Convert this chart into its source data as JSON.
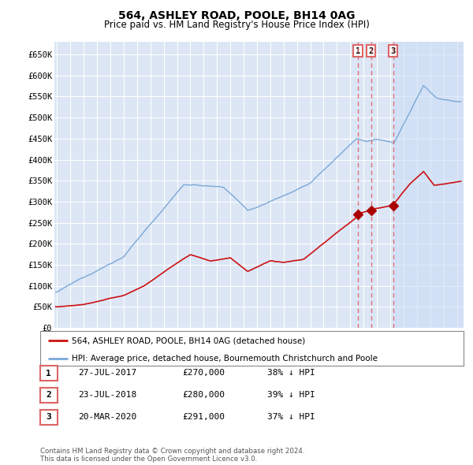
{
  "title": "564, ASHLEY ROAD, POOLE, BH14 0AG",
  "subtitle": "Price paid vs. HM Land Registry's House Price Index (HPI)",
  "ylabel_ticks": [
    "£0",
    "£50K",
    "£100K",
    "£150K",
    "£200K",
    "£250K",
    "£300K",
    "£350K",
    "£400K",
    "£450K",
    "£500K",
    "£550K",
    "£600K",
    "£650K"
  ],
  "ytick_values": [
    0,
    50000,
    100000,
    150000,
    200000,
    250000,
    300000,
    350000,
    400000,
    450000,
    500000,
    550000,
    600000,
    650000
  ],
  "ylim": [
    0,
    680000
  ],
  "xlim_start": 1994.8,
  "xlim_end": 2025.5,
  "background_color": "#ffffff",
  "plot_bg_color": "#dce6f5",
  "grid_color": "#ffffff",
  "hpi_line_color": "#7aa8d8",
  "price_line_color": "#cc1111",
  "sale_marker_color": "#aa0000",
  "dashed_line_color": "#dd6666",
  "shade_color": "#ccddf5",
  "sale_points": [
    {
      "date": 2017.57,
      "price": 270000,
      "label": "1"
    },
    {
      "date": 2018.56,
      "price": 280000,
      "label": "2"
    },
    {
      "date": 2020.22,
      "price": 291000,
      "label": "3"
    }
  ],
  "legend_label_price": "564, ASHLEY ROAD, POOLE, BH14 0AG (detached house)",
  "legend_label_hpi": "HPI: Average price, detached house, Bournemouth Christchurch and Poole",
  "table_rows": [
    {
      "num": "1",
      "date": "27-JUL-2017",
      "price": "£270,000",
      "hpi": "38% ↓ HPI"
    },
    {
      "num": "2",
      "date": "23-JUL-2018",
      "price": "£280,000",
      "hpi": "39% ↓ HPI"
    },
    {
      "num": "3",
      "date": "20-MAR-2020",
      "price": "£291,000",
      "hpi": "37% ↓ HPI"
    }
  ],
  "footer": "Contains HM Land Registry data © Crown copyright and database right 2024.\nThis data is licensed under the Open Government Licence v3.0."
}
